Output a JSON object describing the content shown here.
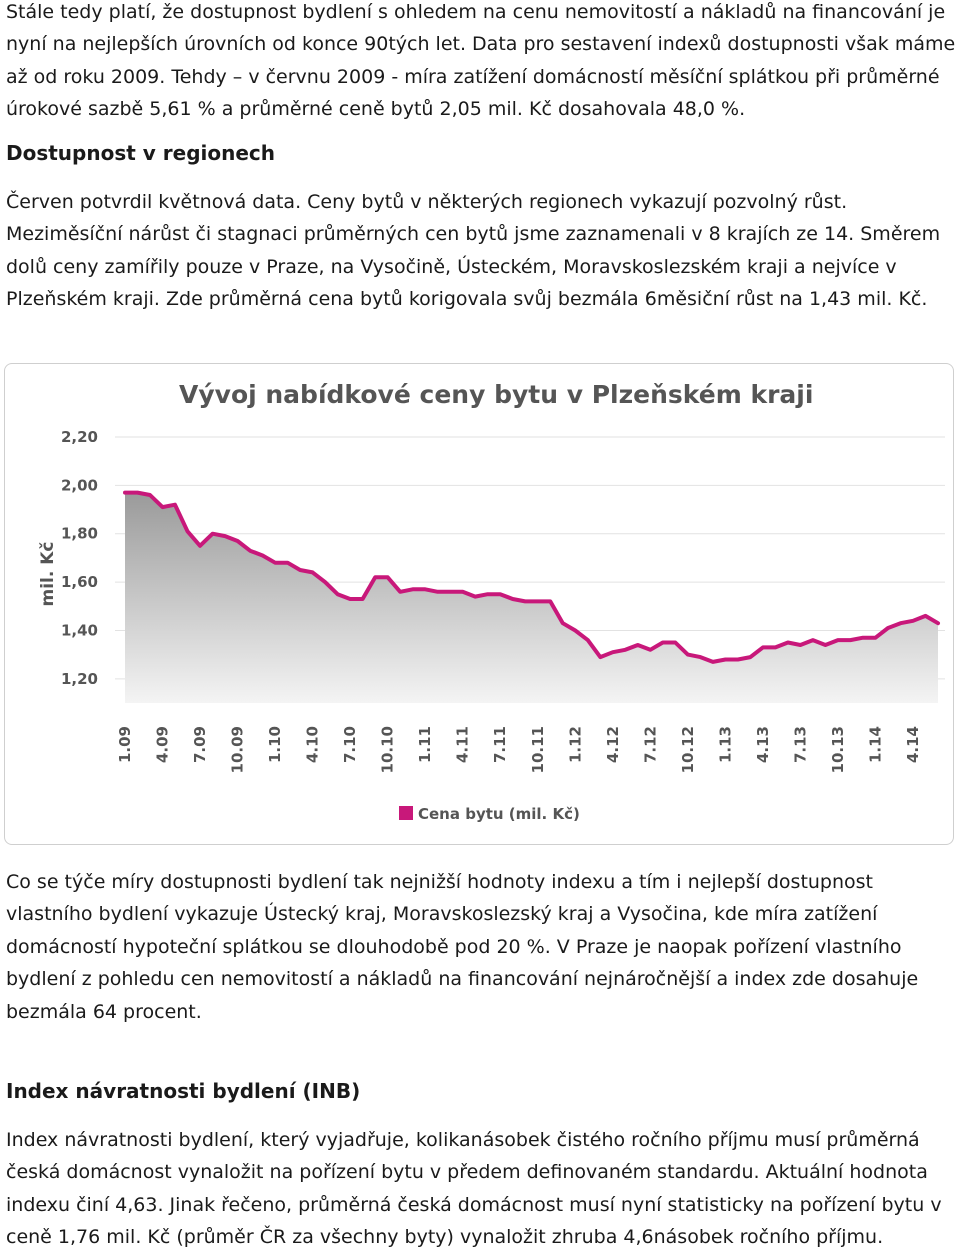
{
  "text": {
    "p1": "Stále tedy platí, že dostupnost bydlení s ohledem na cenu nemovitostí a nákladů na financování je nyní na nejlepších úrovních od konce 90tých let. Data pro sestavení indexů dostupnosti však máme až od roku 2009. Tehdy – v červnu 2009 - míra zatížení domácností měsíční splátkou při průměrné úrokové sazbě 5,61 % a průměrné ceně bytů 2,05 mil. Kč dosahovala 48,0 %.",
    "h1": "Dostupnost v regionech",
    "p2": "Červen potvrdil květnová data. Ceny bytů v některých regionech vykazují pozvolný růst. Meziměsíční nárůst či stagnaci průměrných cen bytů jsme zaznamenali v 8 krajích ze 14. Směrem dolů ceny zamířily pouze v Praze, na Vysočině, Ústeckém, Moravskoslezském kraji a nejvíce v Plzeňském kraji. Zde průměrná cena bytů korigovala svůj bezmála 6měsiční růst na 1,43 mil. Kč.",
    "p3": "Co se týče míry dostupnosti bydlení tak nejnižší hodnoty indexu a tím i nejlepší dostupnost vlastního bydlení vykazuje Ústecký kraj, Moravskoslezský kraj a Vysočina, kde míra zatížení domácností hypoteční splátkou se dlouhodobě pod 20 %. V Praze je naopak pořízení vlastního bydlení z pohledu cen nemovitostí a nákladů na financování nejnáročnější a index zde dosahuje bezmála 64 procent.",
    "h2": "Index návratnosti bydlení (INB)",
    "p4": "Index návratnosti bydlení, který vyjadřuje, kolikanásobek čistého ročního příjmu musí průměrná česká domácnost vynaložit na pořízení bytu v předem definovaném standardu. Aktuální hodnota indexu činí 4,63. Jinak řečeno, průměrná česká domácnost musí nyní statisticky na pořízení bytu v ceně 1,76 mil. Kč (průměr ČR za všechny byty) vynaložit zhruba 4,6násobek ročního příjmu."
  },
  "colors": {
    "series": "#c8187a",
    "area_top": "#9a9a9a",
    "area_bottom": "#f4f4f4",
    "grid": "#e2e2e2",
    "text": "#555555"
  },
  "chart_data": {
    "type": "area",
    "title": "Vývoj nabídkové ceny bytu v Plzeňském kraji",
    "ylabel": "mil. Kč",
    "xlabel": "",
    "ylim": [
      1.1,
      2.2
    ],
    "yticks": [
      "2,20",
      "2,00",
      "1,80",
      "1,60",
      "1,40",
      "1,20"
    ],
    "ytick_values": [
      2.2,
      2.0,
      1.8,
      1.6,
      1.4,
      1.2
    ],
    "grid": true,
    "legend_position": "bottom-left",
    "xtick_labels": [
      "1.09",
      "4.09",
      "7.09",
      "10.09",
      "1.10",
      "4.10",
      "7.10",
      "10.10",
      "1.11",
      "4.11",
      "7.11",
      "10.11",
      "1.12",
      "4.12",
      "7.12",
      "10.12",
      "1.13",
      "4.13",
      "7.13",
      "10.13",
      "1.14",
      "4.14"
    ],
    "series": [
      {
        "name": "Cena bytu (mil. Kč)",
        "x": [
          "1.09",
          "2.09",
          "3.09",
          "4.09",
          "5.09",
          "6.09",
          "7.09",
          "8.09",
          "9.09",
          "10.09",
          "11.09",
          "12.09",
          "1.10",
          "2.10",
          "3.10",
          "4.10",
          "5.10",
          "6.10",
          "7.10",
          "8.10",
          "9.10",
          "10.10",
          "11.10",
          "12.10",
          "1.11",
          "2.11",
          "3.11",
          "4.11",
          "5.11",
          "6.11",
          "7.11",
          "8.11",
          "9.11",
          "10.11",
          "11.11",
          "12.11",
          "1.12",
          "2.12",
          "3.12",
          "4.12",
          "5.12",
          "6.12",
          "7.12",
          "8.12",
          "9.12",
          "10.12",
          "11.12",
          "12.12",
          "1.13",
          "2.13",
          "3.13",
          "4.13",
          "5.13",
          "6.13",
          "7.13",
          "8.13",
          "9.13",
          "10.13",
          "11.13",
          "12.13",
          "1.14",
          "2.14",
          "3.14",
          "4.14",
          "5.14",
          "6.14"
        ],
        "values": [
          1.97,
          1.97,
          1.96,
          1.91,
          1.92,
          1.81,
          1.75,
          1.8,
          1.79,
          1.77,
          1.73,
          1.71,
          1.68,
          1.68,
          1.65,
          1.64,
          1.6,
          1.55,
          1.53,
          1.53,
          1.62,
          1.62,
          1.56,
          1.57,
          1.57,
          1.56,
          1.56,
          1.56,
          1.54,
          1.55,
          1.55,
          1.53,
          1.52,
          1.52,
          1.52,
          1.43,
          1.4,
          1.36,
          1.29,
          1.31,
          1.32,
          1.34,
          1.32,
          1.35,
          1.35,
          1.3,
          1.29,
          1.27,
          1.28,
          1.28,
          1.29,
          1.33,
          1.33,
          1.35,
          1.34,
          1.36,
          1.34,
          1.36,
          1.36,
          1.37,
          1.37,
          1.41,
          1.43,
          1.44,
          1.46,
          1.43
        ]
      }
    ]
  }
}
